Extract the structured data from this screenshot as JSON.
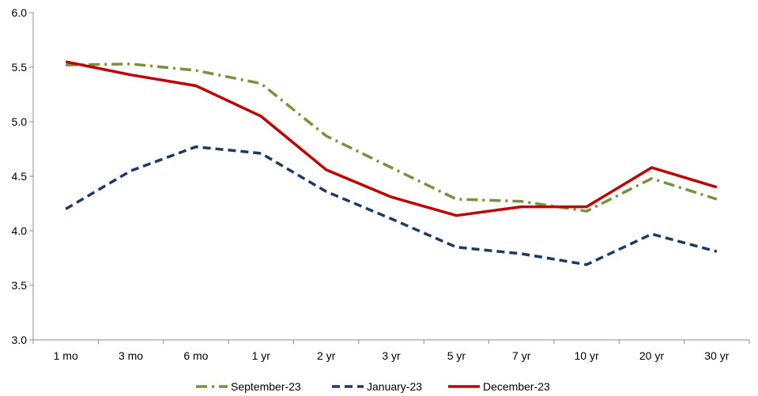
{
  "chart_data": {
    "type": "line",
    "categories": [
      "1 mo",
      "3 mo",
      "6 mo",
      "1 yr",
      "2 yr",
      "3 yr",
      "5 yr",
      "7 yr",
      "10 yr",
      "20 yr",
      "30 yr"
    ],
    "ylim": [
      3.0,
      6.0
    ],
    "yticks": [
      "3.0",
      "3.5",
      "4.0",
      "4.5",
      "5.0",
      "5.5",
      "6.0"
    ],
    "legend_position": "bottom",
    "grid": false,
    "series": [
      {
        "name": "September-23",
        "color": "#77933C",
        "style": "dash-dot",
        "values": [
          5.52,
          5.53,
          5.47,
          5.35,
          4.87,
          4.58,
          4.29,
          4.27,
          4.18,
          4.48,
          4.29
        ]
      },
      {
        "name": "January-23",
        "color": "#1F3864",
        "style": "dashed",
        "values": [
          4.2,
          4.55,
          4.77,
          4.71,
          4.36,
          4.11,
          3.85,
          3.79,
          3.69,
          3.97,
          3.81
        ]
      },
      {
        "name": "December-23",
        "color": "#C00000",
        "style": "solid",
        "values": [
          5.55,
          5.43,
          5.33,
          5.05,
          4.56,
          4.31,
          4.14,
          4.22,
          4.22,
          4.58,
          4.4
        ]
      }
    ]
  }
}
